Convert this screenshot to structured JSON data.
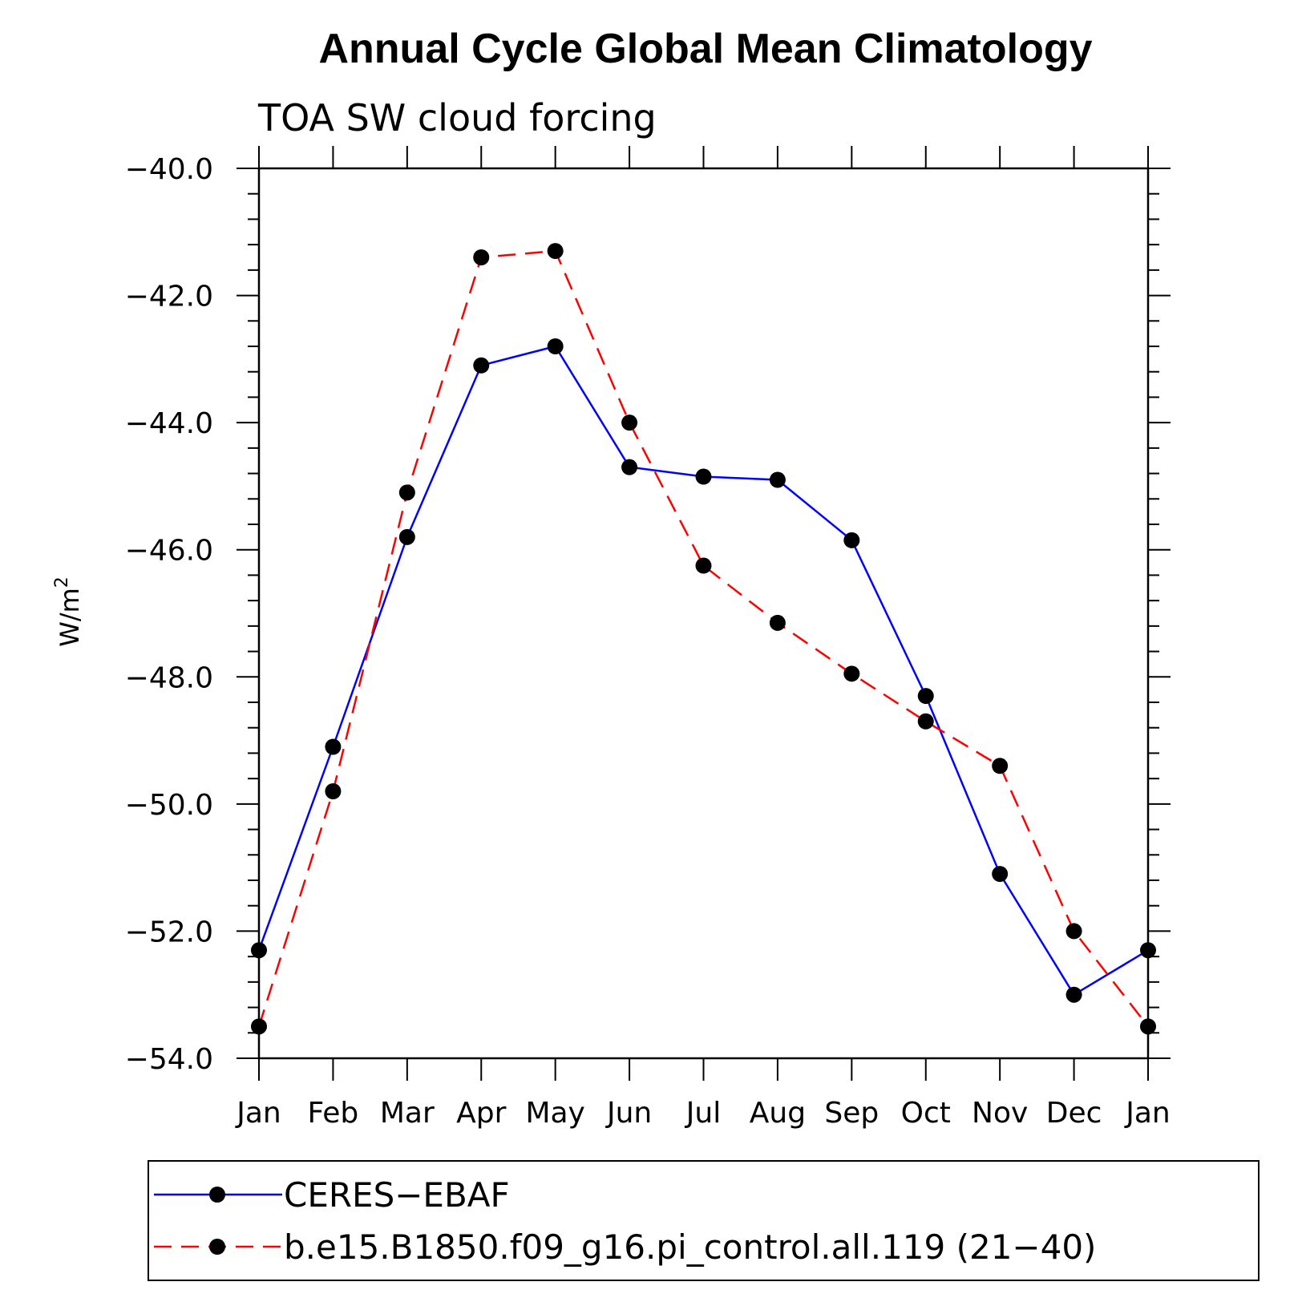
{
  "chart_data": {
    "type": "line",
    "title": "Annual Cycle Global Mean Climatology",
    "subtitle": "TOA SW cloud forcing",
    "ylabel": "W/m",
    "ylabel_superscript": "2",
    "xlabel": "",
    "categories": [
      "Jan",
      "Feb",
      "Mar",
      "Apr",
      "May",
      "Jun",
      "Jul",
      "Aug",
      "Sep",
      "Oct",
      "Nov",
      "Dec",
      "Jan"
    ],
    "ylim": [
      -54.0,
      -40.0
    ],
    "yticks": [
      "-40.0",
      "-42.0",
      "-44.0",
      "-46.0",
      "-48.0",
      "-50.0",
      "-52.0",
      "-54.0"
    ],
    "grid": false,
    "legend_position": "bottom",
    "series": [
      {
        "name": "CERES−EBAF",
        "color": "#0000ff",
        "dash": "solid",
        "marker": "filled-circle",
        "values": [
          -52.3,
          -49.1,
          -45.8,
          -43.1,
          -42.8,
          -44.7,
          -44.85,
          -44.9,
          -45.85,
          -48.3,
          -51.1,
          -53.0,
          -52.3
        ]
      },
      {
        "name": "b.e15.B1850.f09_g16.pi_control.all.119 (21−40)",
        "color": "#ff0000",
        "dash": "dashed",
        "marker": "filled-circle",
        "values": [
          -53.5,
          -49.8,
          -45.1,
          -41.4,
          -41.3,
          -44.0,
          -46.25,
          -47.15,
          -47.95,
          -48.7,
          -49.4,
          -52.0,
          -53.5
        ]
      }
    ]
  }
}
